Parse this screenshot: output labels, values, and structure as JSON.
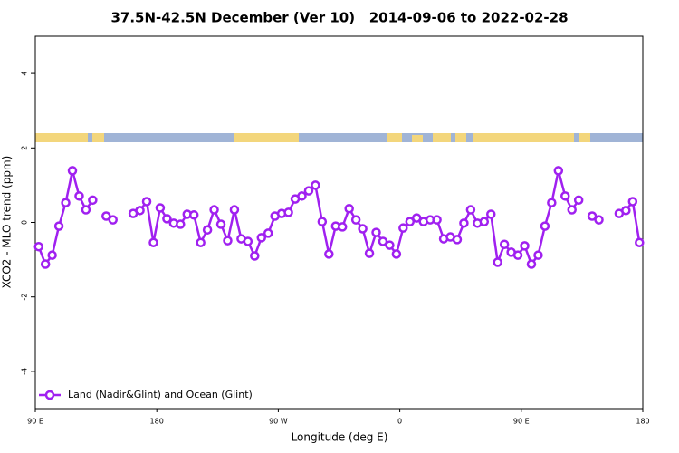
{
  "chart_data": {
    "type": "line",
    "title": "37.5N-42.5N December (Ver 10)   2014-09-06 to 2022-02-28",
    "x_label": "Longitude (deg E)",
    "y_label": "XCO2 - MLO trend (ppm)",
    "x": [
      92.5,
      97.5,
      102.5,
      107.5,
      112.5,
      117.5,
      122.5,
      127.5,
      132.5,
      137.5,
      142.5,
      147.5,
      152.5,
      157.5,
      162.5,
      167.5,
      172.5,
      177.5,
      182.5,
      187.5,
      192.5,
      197.5,
      202.5,
      207.5,
      212.5,
      217.5,
      222.5,
      227.5,
      232.5,
      237.5,
      242.5,
      247.5,
      252.5,
      257.5,
      262.5,
      267.5,
      272.5,
      277.5,
      282.5,
      287.5,
      292.5,
      297.5,
      302.5,
      307.5,
      312.5,
      317.5,
      322.5,
      327.5,
      332.5,
      337.5,
      342.5,
      347.5,
      352.5,
      357.5,
      362.5,
      367.5,
      372.5,
      377.5,
      382.5,
      387.5,
      392.5,
      397.5,
      402.5,
      407.5,
      412.5,
      417.5,
      422.5,
      427.5,
      432.5,
      437.5,
      442.5,
      447.5,
      452.5,
      457.5,
      462.5,
      467.5,
      472.5,
      477.5,
      482.5,
      487.5,
      492.5,
      497.5,
      502.5,
      507.5,
      512.5,
      517.5,
      522.5,
      527.5,
      532.5,
      537.5
    ],
    "series": [
      {
        "name": "Land (Nadir&Glint) and Ocean (Glint)",
        "color": "#a020f0",
        "values": [
          -0.65,
          -1.12,
          -0.88,
          -0.1,
          0.53,
          1.39,
          0.71,
          0.34,
          0.6,
          null,
          0.17,
          0.07,
          null,
          null,
          0.24,
          0.32,
          0.56,
          -0.54,
          0.39,
          0.1,
          -0.02,
          -0.05,
          0.22,
          0.2,
          -0.54,
          -0.2,
          0.34,
          -0.05,
          -0.49,
          0.34,
          -0.44,
          -0.51,
          -0.9,
          -0.41,
          -0.29,
          0.17,
          0.24,
          0.27,
          0.63,
          0.71,
          0.85,
          1.0,
          0.02,
          -0.85,
          -0.1,
          -0.12,
          0.37,
          0.07,
          -0.17,
          -0.83,
          -0.27,
          -0.51,
          -0.61,
          -0.85,
          -0.15,
          0.02,
          0.12,
          0.02,
          0.07,
          0.07,
          -0.44,
          -0.39,
          -0.46,
          -0.02,
          0.34,
          -0.02,
          0.02,
          0.22,
          -1.07,
          -0.59,
          -0.8,
          -0.88,
          -0.63,
          -1.12,
          -0.88,
          -0.1,
          0.53,
          1.39,
          0.71,
          0.34,
          0.6,
          null,
          0.17,
          0.07,
          null,
          null,
          0.24,
          0.32,
          0.56,
          -0.54
        ]
      }
    ],
    "xlim": [
      90,
      540
    ],
    "xticks": [
      {
        "value": 90,
        "label": "90 E"
      },
      {
        "value": 180,
        "label": "180"
      },
      {
        "value": 270,
        "label": "90 W"
      },
      {
        "value": 360,
        "label": "0"
      },
      {
        "value": 450,
        "label": "90 E"
      },
      {
        "value": 540,
        "label": "180"
      }
    ],
    "ylim": [
      -5,
      5
    ],
    "yticks": [
      -4,
      -2,
      0,
      2,
      4
    ],
    "legend": "bottomleft"
  }
}
